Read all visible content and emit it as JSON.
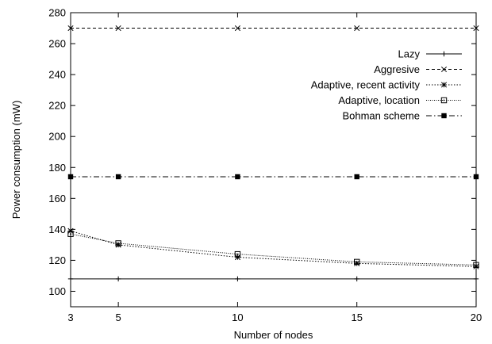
{
  "chart_data": {
    "type": "line",
    "title": "",
    "xlabel": "Number of nodes",
    "ylabel": "Power consumption (mW)",
    "xlim": [
      3,
      20
    ],
    "ylim": [
      90,
      280
    ],
    "xticks": [
      3,
      5,
      10,
      15,
      20
    ],
    "yticks": [
      100,
      120,
      140,
      160,
      180,
      200,
      220,
      240,
      260,
      280
    ],
    "grid": false,
    "legend_position": "top-right",
    "series": [
      {
        "name": "Lazy",
        "marker": "plus",
        "dash": "solid",
        "x": [
          3,
          5,
          10,
          15,
          20
        ],
        "y": [
          108,
          108,
          108,
          108,
          108
        ]
      },
      {
        "name": "Aggresive",
        "marker": "cross",
        "dash": "dashed",
        "x": [
          3,
          5,
          10,
          15,
          20
        ],
        "y": [
          270,
          270,
          270,
          270,
          270
        ]
      },
      {
        "name": "Adaptive, recent activity",
        "marker": "star",
        "dash": "dotted",
        "x": [
          3,
          5,
          10,
          15,
          20
        ],
        "y": [
          139,
          130,
          122,
          118,
          116
        ]
      },
      {
        "name": "Adaptive, location",
        "marker": "open-square",
        "dash": "fine-dotted",
        "x": [
          3,
          5,
          10,
          15,
          20
        ],
        "y": [
          137,
          131,
          124,
          119,
          117
        ]
      },
      {
        "name": "Bohman scheme",
        "marker": "filled-square",
        "dash": "dash-dot",
        "x": [
          3,
          5,
          10,
          15,
          20
        ],
        "y": [
          174,
          174,
          174,
          174,
          174
        ]
      }
    ]
  }
}
